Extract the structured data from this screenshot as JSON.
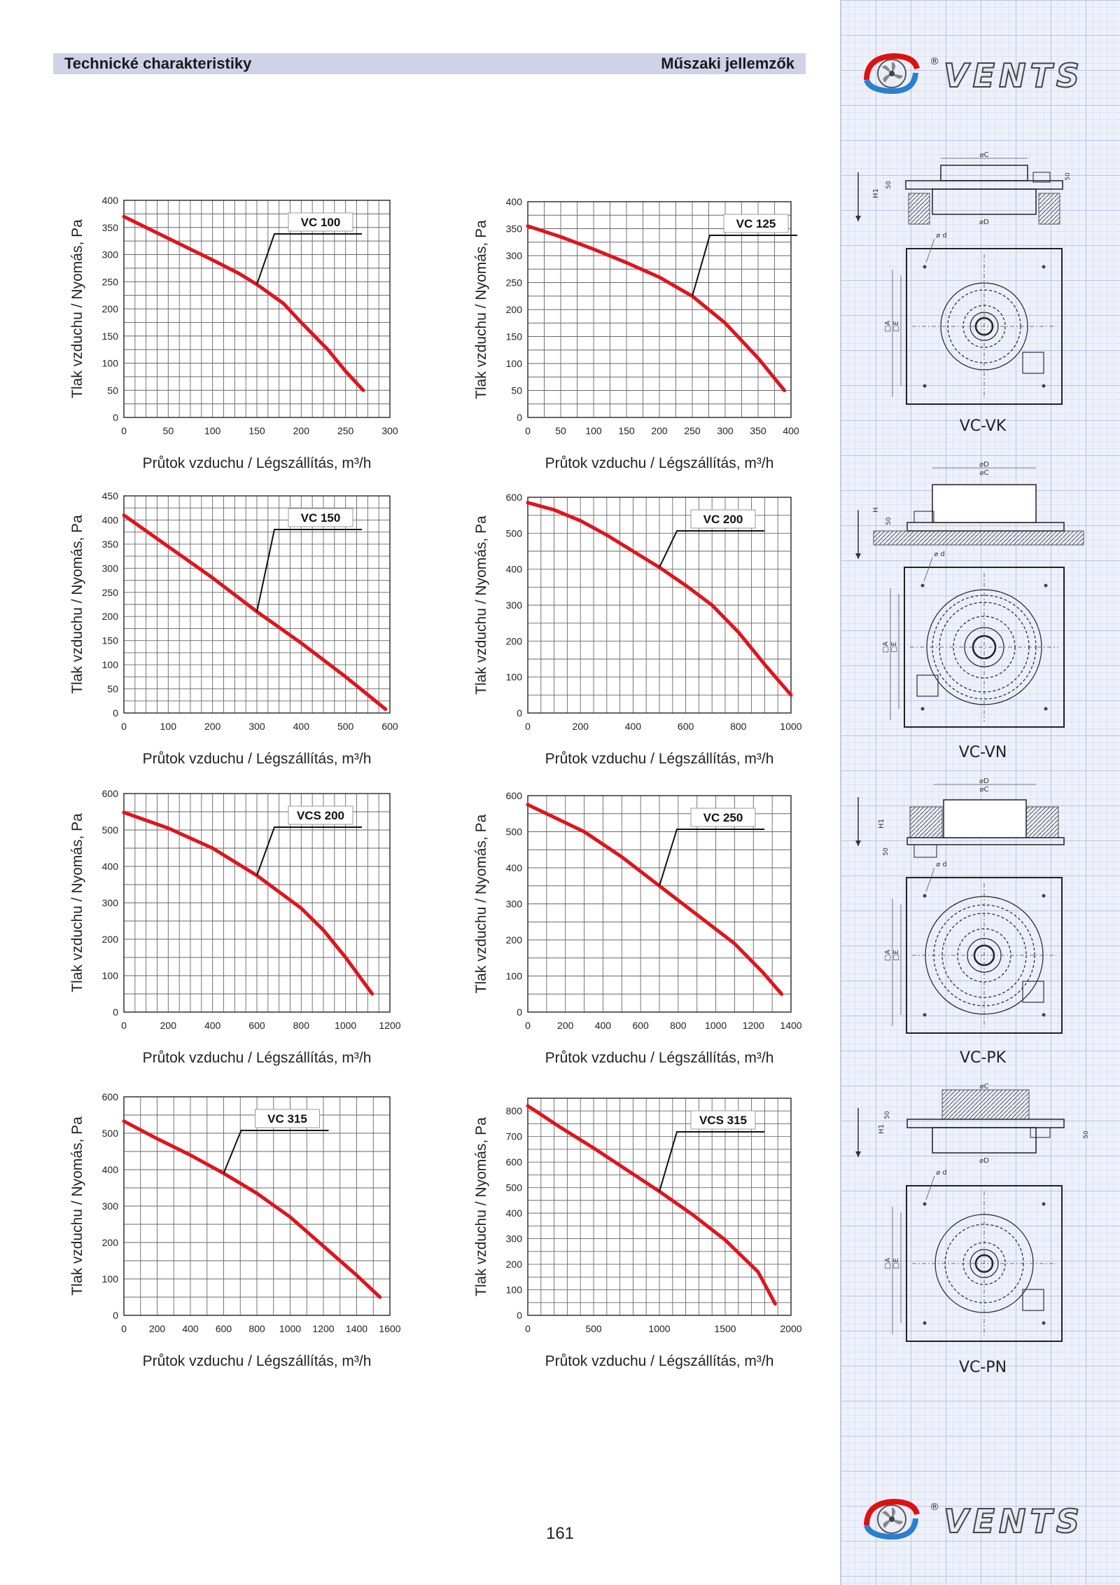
{
  "header": {
    "left_title": "Technické charakteristiky",
    "right_title": "Műszaki jellemzők"
  },
  "brand": {
    "logo_text": "VENTS",
    "registered": "®"
  },
  "page_number": "161",
  "diagrams": {
    "labels": [
      "VC-VK",
      "VC-VN",
      "VC-PK",
      "VC-PN"
    ],
    "dim_labels": {
      "c": "⌀C",
      "d": "⌀D",
      "dd": "⌀ d",
      "a": "□A",
      "e": "□E",
      "h1": "H1",
      "h": "H",
      "fifty": "50"
    }
  },
  "colors": {
    "curve": "#e0141c",
    "grid": "#666666",
    "header_bg": "#cfd3e8",
    "sidebar_grid": "#b9c3e6"
  },
  "chart_data": [
    {
      "type": "line",
      "model": "VC 100",
      "xlabel": "Průtok vzduchu / Légszállítás, m³/h",
      "ylabel": "Tlak vzduchu / Nyomás, Pa",
      "xlim": [
        0,
        300
      ],
      "ylim": [
        0,
        400
      ],
      "xticks": [
        0,
        50,
        100,
        150,
        200,
        250,
        300
      ],
      "yticks": [
        0,
        50,
        100,
        150,
        200,
        250,
        300,
        350,
        400
      ],
      "x": [
        0,
        50,
        100,
        130,
        150,
        180,
        200,
        230,
        250,
        270
      ],
      "y": [
        370,
        330,
        290,
        265,
        245,
        210,
        175,
        125,
        85,
        50
      ]
    },
    {
      "type": "line",
      "model": "VC 125",
      "xlabel": "Průtok vzduchu / Légszállítás, m³/h",
      "ylabel": "Tlak vzduchu / Nyomás, Pa",
      "xlim": [
        0,
        400
      ],
      "ylim": [
        0,
        400
      ],
      "xticks": [
        0,
        50,
        100,
        150,
        200,
        250,
        300,
        350,
        400
      ],
      "yticks": [
        0,
        50,
        100,
        150,
        200,
        250,
        300,
        350,
        400
      ],
      "x": [
        0,
        50,
        100,
        150,
        200,
        250,
        300,
        350,
        390
      ],
      "y": [
        355,
        335,
        312,
        287,
        260,
        225,
        175,
        110,
        50
      ]
    },
    {
      "type": "line",
      "model": "VC 150",
      "xlabel": "Průtok vzduchu / Légszállítás, m³/h",
      "ylabel": "Tlak vzduchu / Nyomás, Pa",
      "xlim": [
        0,
        600
      ],
      "ylim": [
        0,
        450
      ],
      "xticks": [
        0,
        100,
        200,
        300,
        400,
        500,
        600
      ],
      "yticks": [
        0,
        50,
        100,
        150,
        200,
        250,
        300,
        350,
        400,
        450
      ],
      "x": [
        0,
        100,
        200,
        300,
        400,
        500,
        590
      ],
      "y": [
        410,
        345,
        280,
        210,
        145,
        75,
        8
      ]
    },
    {
      "type": "line",
      "model": "VC 200",
      "xlabel": "Průtok vzduchu / Légszállítás, m³/h",
      "ylabel": "Tlak vzduchu / Nyomás, Pa",
      "xlim": [
        0,
        1000
      ],
      "ylim": [
        0,
        600
      ],
      "xticks": [
        0,
        200,
        400,
        600,
        800,
        1000
      ],
      "yticks": [
        0,
        100,
        200,
        300,
        400,
        500,
        600
      ],
      "x": [
        0,
        100,
        200,
        300,
        400,
        500,
        600,
        700,
        800,
        900,
        1000
      ],
      "y": [
        585,
        565,
        535,
        495,
        450,
        405,
        355,
        300,
        225,
        135,
        50
      ]
    },
    {
      "type": "line",
      "model": "VCS 200",
      "xlabel": "Průtok vzduchu / Légszállítás, m³/h",
      "ylabel": "Tlak vzduchu / Nyomás, Pa",
      "xlim": [
        0,
        1200
      ],
      "ylim": [
        0,
        600
      ],
      "xticks": [
        0,
        200,
        400,
        600,
        800,
        1000,
        1200
      ],
      "yticks": [
        0,
        100,
        200,
        300,
        400,
        500,
        600
      ],
      "x": [
        0,
        200,
        400,
        600,
        800,
        900,
        1000,
        1120
      ],
      "y": [
        548,
        505,
        450,
        375,
        285,
        225,
        150,
        50
      ]
    },
    {
      "type": "line",
      "model": "VC 250",
      "xlabel": "Průtok vzduchu / Légszállítás, m³/h",
      "ylabel": "Tlak vzduchu / Nyomás, Pa",
      "xlim": [
        0,
        1400
      ],
      "ylim": [
        0,
        600
      ],
      "xticks": [
        0,
        200,
        400,
        600,
        800,
        1000,
        1200,
        1400
      ],
      "yticks": [
        0,
        100,
        200,
        300,
        400,
        500,
        600
      ],
      "x": [
        0,
        100,
        300,
        500,
        700,
        900,
        1100,
        1250,
        1350
      ],
      "y": [
        575,
        550,
        500,
        430,
        350,
        270,
        190,
        110,
        50
      ]
    },
    {
      "type": "line",
      "model": "VC 315",
      "xlabel": "Průtok vzduchu / Légszállítás, m³/h",
      "ylabel": "Tlak vzduchu / Nyomás, Pa",
      "xlim": [
        0,
        1600
      ],
      "ylim": [
        0,
        600
      ],
      "xticks": [
        0,
        200,
        400,
        600,
        800,
        1000,
        1200,
        1400,
        1600
      ],
      "yticks": [
        0,
        100,
        200,
        300,
        400,
        500,
        600
      ],
      "x": [
        0,
        200,
        400,
        600,
        800,
        1000,
        1200,
        1400,
        1540
      ],
      "y": [
        533,
        485,
        440,
        390,
        335,
        270,
        190,
        110,
        50
      ]
    },
    {
      "type": "line",
      "model": "VCS 315",
      "xlabel": "Průtok vzduchu / Légszállítás, m³/h",
      "ylabel": "Tlak vzduchu / Nyomás, Pa",
      "xlim": [
        0,
        2000
      ],
      "ylim": [
        0,
        850
      ],
      "xticks": [
        0,
        500,
        1000,
        1500,
        2000
      ],
      "yticks": [
        0,
        100,
        200,
        300,
        400,
        500,
        600,
        700,
        800
      ],
      "x": [
        0,
        250,
        500,
        750,
        1000,
        1250,
        1500,
        1750,
        1880
      ],
      "y": [
        820,
        735,
        655,
        570,
        485,
        395,
        295,
        170,
        45
      ]
    }
  ]
}
